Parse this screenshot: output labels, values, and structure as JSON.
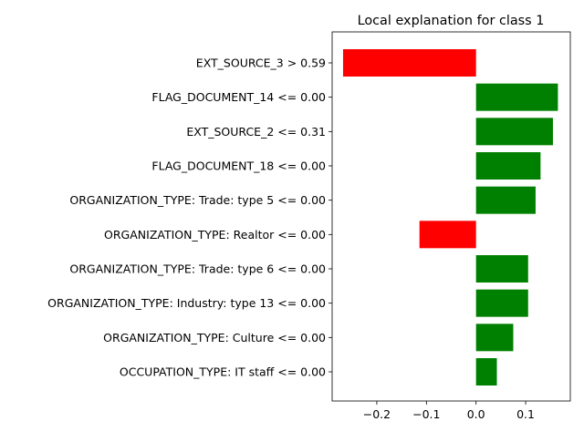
{
  "chart_data": {
    "type": "bar",
    "orientation": "horizontal",
    "title": "Local explanation for class 1",
    "xlabel": "",
    "ylabel": "",
    "xlim": [
      -0.29,
      0.19
    ],
    "xticks": [
      {
        "value": -0.2,
        "label": "−0.2"
      },
      {
        "value": -0.1,
        "label": "−0.1"
      },
      {
        "value": 0.0,
        "label": "0.0"
      },
      {
        "value": 0.1,
        "label": "0.1"
      }
    ],
    "grid": false,
    "categories": [
      "EXT_SOURCE_3 > 0.59",
      "FLAG_DOCUMENT_14 <= 0.00",
      "EXT_SOURCE_2 <= 0.31",
      "FLAG_DOCUMENT_18 <= 0.00",
      "ORGANIZATION_TYPE: Trade: type 5 <= 0.00",
      "ORGANIZATION_TYPE: Realtor <= 0.00",
      "ORGANIZATION_TYPE: Trade: type 6 <= 0.00",
      "ORGANIZATION_TYPE: Industry: type 13 <= 0.00",
      "ORGANIZATION_TYPE: Culture <= 0.00",
      "OCCUPATION_TYPE: IT staff <= 0.00"
    ],
    "values": [
      -0.268,
      0.165,
      0.155,
      0.13,
      0.12,
      -0.114,
      0.105,
      0.105,
      0.075,
      0.042
    ],
    "colors": {
      "positive": "#008000",
      "negative": "#ff0000"
    }
  }
}
